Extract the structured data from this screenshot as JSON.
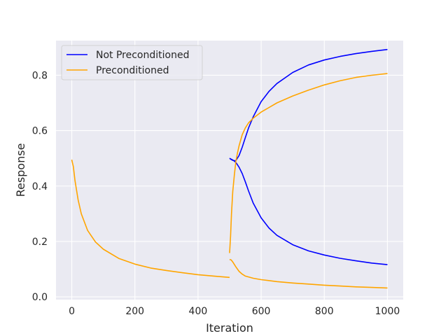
{
  "chart_data": {
    "type": "line",
    "title": "",
    "xlabel": "Iteration",
    "ylabel": "Response",
    "xlim": [
      -50,
      1050
    ],
    "ylim": [
      -0.01,
      0.925
    ],
    "xticks": [
      0,
      200,
      400,
      600,
      800,
      1000
    ],
    "yticks": [
      0.0,
      0.2,
      0.4,
      0.6,
      0.8
    ],
    "xtick_labels": [
      "0",
      "200",
      "400",
      "600",
      "800",
      "1000"
    ],
    "ytick_labels": [
      "0.0",
      "0.2",
      "0.4",
      "0.6",
      "0.8"
    ],
    "grid": true,
    "legend_position": "top-left",
    "legend": [
      {
        "label": "Not Preconditioned",
        "color": "#0000ff"
      },
      {
        "label": "Preconditioned",
        "color": "#ffa500"
      }
    ],
    "series": [
      {
        "name": "Not Preconditioned",
        "color": "#0000ff",
        "x": [
          500,
          505,
          510,
          515,
          520,
          530,
          540,
          550,
          560,
          575,
          600,
          625,
          650,
          700,
          750,
          800,
          850,
          900,
          950,
          1000
        ],
        "y": [
          0.5,
          0.496,
          0.493,
          0.491,
          0.492,
          0.51,
          0.54,
          0.575,
          0.61,
          0.65,
          0.705,
          0.742,
          0.77,
          0.81,
          0.837,
          0.855,
          0.868,
          0.878,
          0.886,
          0.893
        ]
      },
      {
        "name": "Not Preconditioned",
        "color": "#0000ff",
        "x": [
          500,
          505,
          510,
          515,
          520,
          530,
          540,
          550,
          560,
          575,
          600,
          625,
          650,
          700,
          750,
          800,
          850,
          900,
          950,
          1000
        ],
        "y": [
          0.5,
          0.497,
          0.494,
          0.49,
          0.485,
          0.468,
          0.445,
          0.415,
          0.382,
          0.338,
          0.285,
          0.248,
          0.222,
          0.188,
          0.166,
          0.151,
          0.139,
          0.13,
          0.122,
          0.116
        ]
      },
      {
        "name": "Preconditioned",
        "color": "#ffa500",
        "x": [
          0,
          5,
          10,
          20,
          30,
          50,
          75,
          100,
          150,
          200,
          250,
          300,
          350,
          400,
          450,
          500
        ],
        "y": [
          0.495,
          0.47,
          0.42,
          0.35,
          0.3,
          0.24,
          0.198,
          0.172,
          0.138,
          0.118,
          0.104,
          0.095,
          0.087,
          0.08,
          0.075,
          0.07
        ]
      },
      {
        "name": "Preconditioned",
        "color": "#ffa500",
        "x": [
          500,
          503,
          506,
          510,
          515,
          520,
          525,
          530,
          540,
          550,
          560,
          575,
          600,
          650,
          700,
          750,
          800,
          850,
          900,
          950,
          1000
        ],
        "y": [
          0.158,
          0.22,
          0.3,
          0.38,
          0.44,
          0.49,
          0.52,
          0.545,
          0.585,
          0.61,
          0.628,
          0.645,
          0.667,
          0.7,
          0.725,
          0.746,
          0.765,
          0.78,
          0.792,
          0.8,
          0.806
        ]
      },
      {
        "name": "Preconditioned",
        "color": "#ffa500",
        "x": [
          500,
          505,
          510,
          520,
          530,
          540,
          550,
          575,
          600,
          650,
          700,
          750,
          800,
          850,
          900,
          950,
          1000
        ],
        "y": [
          0.135,
          0.133,
          0.126,
          0.108,
          0.092,
          0.082,
          0.075,
          0.067,
          0.062,
          0.055,
          0.05,
          0.046,
          0.042,
          0.039,
          0.036,
          0.034,
          0.032
        ]
      }
    ]
  }
}
